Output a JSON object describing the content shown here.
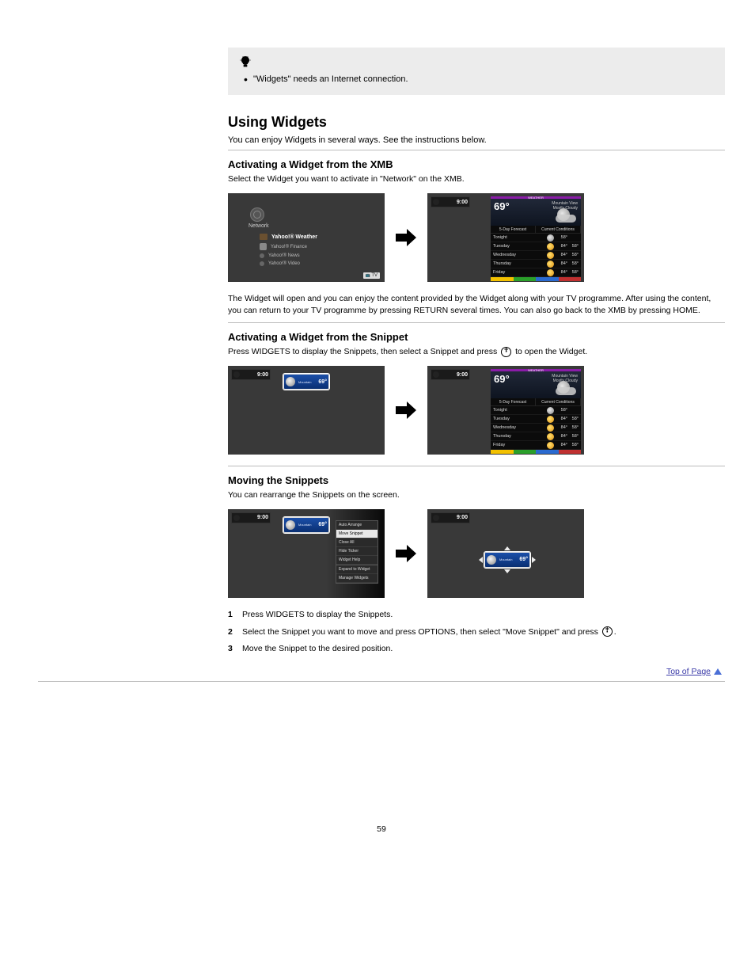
{
  "tipBox": {
    "bullet": "\"Widgets\" needs an Internet connection."
  },
  "section": {
    "title": "Using Widgets",
    "intro": "You can enjoy Widgets in several ways. See the instructions below."
  },
  "sub1": {
    "title": "Activating a Widget from the XMB",
    "p1": "Select the Widget you want to activate in \"Network\" on the XMB.",
    "p2": "The Widget will open and you can enjoy the content provided by the Widget along with your TV programme. After using the content, you can return to your TV programme by pressing RETURN several times. You can also go back to the XMB by pressing HOME."
  },
  "sub2": {
    "title": "Activating a Widget from the Snippet",
    "p1_a": "Press WIDGETS to display the Snippets, then select a Snippet and press ",
    "p1_b": " to open the Widget."
  },
  "sub3": {
    "title": "Moving the Snippets",
    "p1": "You can rearrange the Snippets on the screen.",
    "steps": [
      {
        "n": "1",
        "t": "Press WIDGETS to display the Snippets."
      },
      {
        "n": "2",
        "t_a": "Select the Snippet you want to move and press OPTIONS, then select \"Move Snippet\" and press ",
        "t_b": "."
      },
      {
        "n": "3",
        "t": "Move the Snippet to the desired position."
      }
    ]
  },
  "topLink": "Top of Page",
  "pageNumber": "59",
  "xmb": {
    "category": "Network",
    "items": [
      {
        "sel": true,
        "label": "Yahoo!® Weather"
      },
      {
        "sel": false,
        "label": "Yahoo!® Finance"
      },
      {
        "sel": false,
        "label": "Yahoo!® News"
      },
      {
        "sel": false,
        "label": "Yahoo!® Video"
      }
    ],
    "tvTag": "TV"
  },
  "corner": {
    "num": "9:00"
  },
  "weather": {
    "bar": "WEATHER",
    "temp": "69°",
    "loc1": "Mountain View",
    "loc2": "Mostly Cloudy",
    "tab1": "5-Day Forecast",
    "tab2": "Current Conditions",
    "rows": [
      {
        "day": "Tonight",
        "icon": "moon",
        "hi": "58°",
        "lo": ""
      },
      {
        "day": "Tuesday",
        "icon": "sun",
        "hi": "84°",
        "lo": "58°"
      },
      {
        "day": "Wednesday",
        "icon": "sun",
        "hi": "84°",
        "lo": "58°"
      },
      {
        "day": "Thursday",
        "icon": "sun",
        "hi": "84°",
        "lo": "58°"
      },
      {
        "day": "Friday",
        "icon": "sun",
        "hi": "84°",
        "lo": "58°"
      }
    ]
  },
  "snippet": {
    "deg": "69°",
    "lab": "Mountain"
  },
  "optionsMenu": [
    {
      "label": "Auto Arrange",
      "sel": false
    },
    {
      "label": "Move Snippet",
      "sel": true
    },
    {
      "label": "Close All",
      "sel": false
    },
    {
      "label": "Hide Ticker",
      "sel": false
    },
    {
      "label": "Widget Help",
      "sel": false
    },
    {
      "label": "Expand to Widget",
      "sel": false,
      "sep": true
    },
    {
      "label": "Manage Widgets",
      "sel": false
    }
  ]
}
